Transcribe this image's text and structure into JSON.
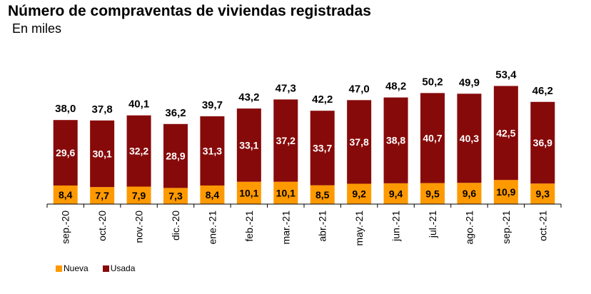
{
  "header": {
    "title": "Número de compraventas de viviendas registradas",
    "subtitle": "En miles"
  },
  "colors": {
    "nueva": "#FF9900",
    "usada": "#870A0A",
    "axis": "#000000"
  },
  "chart_data": {
    "type": "bar",
    "stacked": true,
    "title": "Número de compraventas de viviendas registradas",
    "subtitle": "En miles",
    "xlabel": "",
    "ylabel": "",
    "ylim": [
      0,
      55
    ],
    "grid": false,
    "legend_position": "bottom-left",
    "categories": [
      "sep.-20",
      "oct.-20",
      "nov.-20",
      "dic.-20",
      "ene.-21",
      "feb.-21",
      "mar.-21",
      "abr.-21",
      "may.-21",
      "jun.-21",
      "jul.-21",
      "ago.-21",
      "sep.-21",
      "oct.-21"
    ],
    "series": [
      {
        "name": "Nueva",
        "values": [
          8.4,
          7.7,
          7.9,
          7.3,
          8.4,
          10.1,
          10.1,
          8.5,
          9.2,
          9.4,
          9.5,
          9.6,
          10.9,
          9.3
        ],
        "labels": [
          "8,4",
          "7,7",
          "7,9",
          "7,3",
          "8,4",
          "10,1",
          "10,1",
          "8,5",
          "9,2",
          "9,4",
          "9,5",
          "9,6",
          "10,9",
          "9,3"
        ]
      },
      {
        "name": "Usada",
        "values": [
          29.6,
          30.1,
          32.2,
          28.9,
          31.3,
          33.1,
          37.2,
          33.7,
          37.8,
          38.8,
          40.7,
          40.3,
          42.5,
          36.9
        ],
        "labels": [
          "29,6",
          "30,1",
          "32,2",
          "28,9",
          "31,3",
          "33,1",
          "37,2",
          "33,7",
          "37,8",
          "38,8",
          "40,7",
          "40,3",
          "42,5",
          "36,9"
        ]
      }
    ],
    "totals": [
      38.0,
      37.8,
      40.1,
      36.2,
      39.7,
      43.2,
      47.3,
      42.2,
      47.0,
      48.2,
      50.2,
      49.9,
      53.4,
      46.2
    ],
    "total_labels": [
      "38,0",
      "37,8",
      "40,1",
      "36,2",
      "39,7",
      "43,2",
      "47,3",
      "42,2",
      "47,0",
      "48,2",
      "50,2",
      "49,9",
      "53,4",
      "46,2"
    ]
  },
  "legend": {
    "items": [
      {
        "label": "Nueva"
      },
      {
        "label": "Usada"
      }
    ]
  }
}
